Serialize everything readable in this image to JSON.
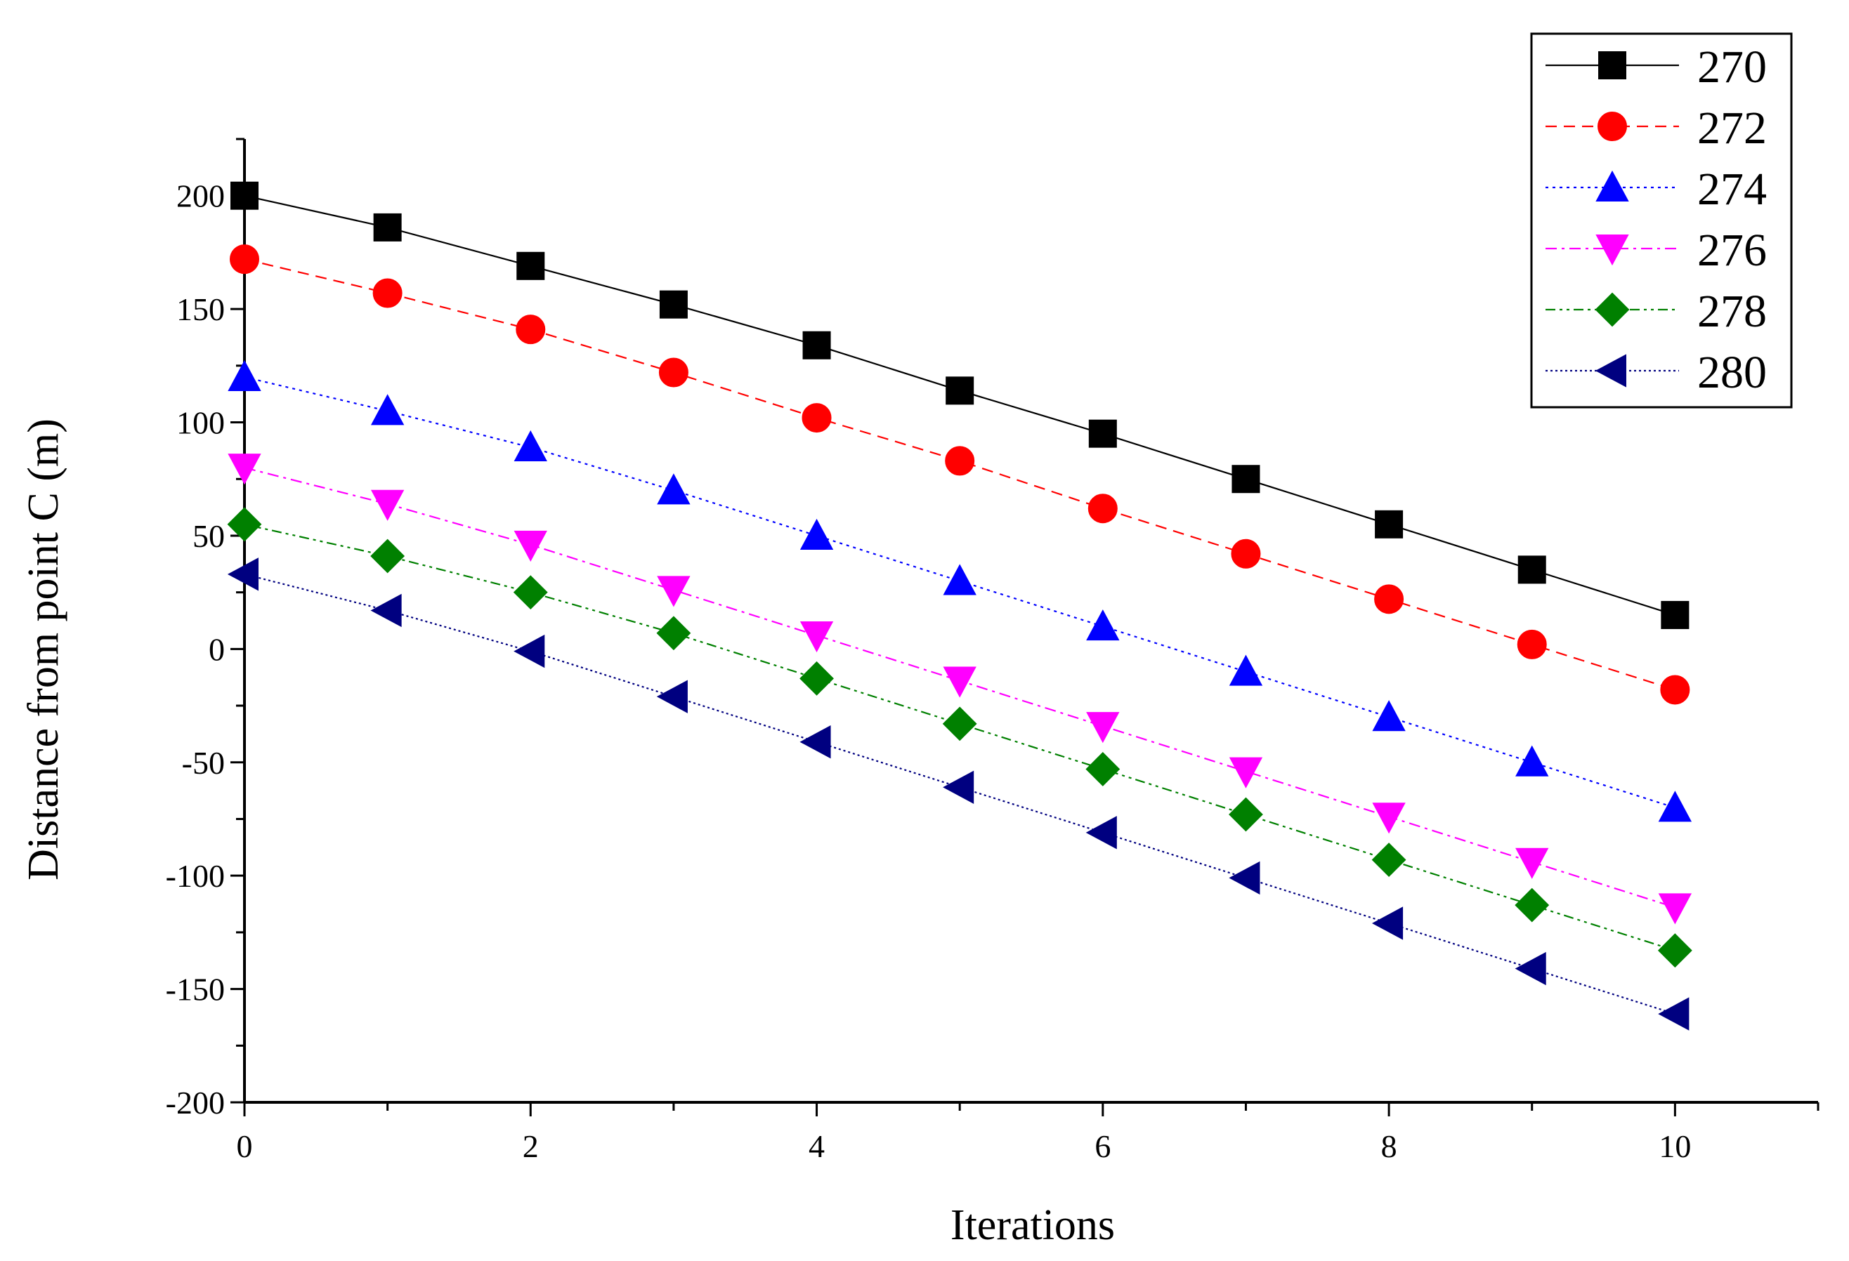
{
  "chart_data": {
    "type": "line",
    "title": "",
    "xlabel": "Iterations",
    "ylabel": "Distance from point C (m)",
    "xlim": [
      0,
      11
    ],
    "ylim": [
      -200,
      225
    ],
    "xticks": [
      0,
      2,
      4,
      6,
      8,
      10
    ],
    "yticks": [
      -200,
      -150,
      -100,
      -50,
      0,
      50,
      100,
      150,
      200
    ],
    "xtick_labels": [
      "0",
      "2",
      "4",
      "6",
      "8",
      "10"
    ],
    "ytick_labels": [
      "-200",
      "-150",
      "-100",
      "-50",
      "0",
      "50",
      "100",
      "150",
      "200"
    ],
    "grid": false,
    "legend_position": "top-right",
    "x": [
      0,
      1,
      2,
      3,
      4,
      5,
      6,
      7,
      8,
      9,
      10
    ],
    "series": [
      {
        "name": "270",
        "color": "#000000",
        "dash": "solid",
        "marker": "square",
        "values": [
          200,
          186,
          169,
          152,
          134,
          114,
          95,
          75,
          55,
          35,
          15
        ]
      },
      {
        "name": "272",
        "color": "#ff0000",
        "dash": "dashed",
        "marker": "circle",
        "values": [
          172,
          157,
          141,
          122,
          102,
          83,
          62,
          42,
          22,
          2,
          -18
        ]
      },
      {
        "name": "274",
        "color": "#0000ff",
        "dash": "dotted",
        "marker": "triangle-up",
        "values": [
          120,
          105,
          89,
          70,
          50,
          30,
          10,
          -10,
          -30,
          -50,
          -70
        ]
      },
      {
        "name": "276",
        "color": "#ff00ff",
        "dash": "dashdot",
        "marker": "triangle-down",
        "values": [
          80,
          64,
          46,
          26,
          6,
          -14,
          -34,
          -54,
          -74,
          -94,
          -114
        ]
      },
      {
        "name": "278",
        "color": "#008000",
        "dash": "dashdotdot",
        "marker": "diamond",
        "values": [
          55,
          41,
          25,
          7,
          -13,
          -33,
          -53,
          -73,
          -93,
          -113,
          -133
        ]
      },
      {
        "name": "280",
        "color": "#000080",
        "dash": "shortdot",
        "marker": "triangle-left",
        "values": [
          33,
          17,
          -1,
          -21,
          -41,
          -61,
          -81,
          -101,
          -121,
          -141,
          -161
        ]
      }
    ]
  }
}
